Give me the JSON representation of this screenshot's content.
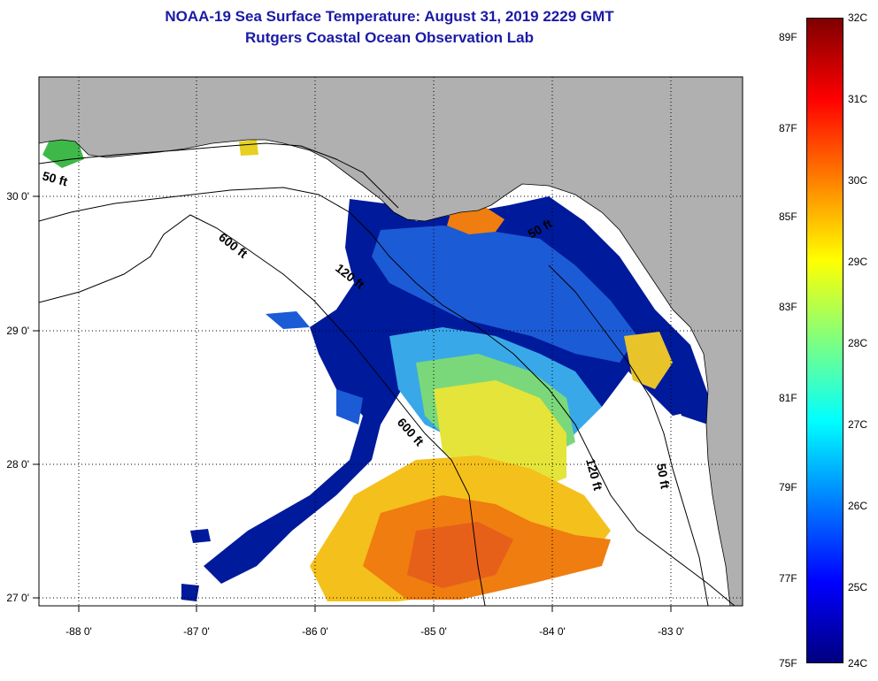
{
  "title": "NOAA-19 Sea Surface Temperature:  August 31, 2019 2229 GMT",
  "subtitle": "Rutgers Coastal Ocean Observation Lab",
  "map": {
    "lon_ticks": [
      "-88 0'",
      "-87 0'",
      "-86 0'",
      "-85 0'",
      "-84 0'",
      "-83 0'"
    ],
    "lat_ticks": [
      "30 0'",
      "29 0'",
      "28 0'",
      "27 0'"
    ],
    "contour_labels": {
      "c50_west": "50 ft",
      "c600_north": "600 ft",
      "c120_north": "120 ft",
      "c50_bay": "50 ft",
      "c600_south": "600 ft",
      "c120_south": "120 ft",
      "c50_east": "50 ft"
    },
    "land_color": "#b0b0b0",
    "no_data_color": "#ffffff"
  },
  "colorbar": {
    "range_c": [
      24,
      32
    ],
    "range_f": [
      75,
      89
    ],
    "celsius_labels": [
      "32C",
      "31C",
      "30C",
      "29C",
      "28C",
      "27C",
      "26C",
      "25C",
      "24C"
    ],
    "fahrenheit_labels": [
      "89F",
      "87F",
      "85F",
      "83F",
      "81F",
      "79F",
      "77F",
      "75F"
    ],
    "colors": [
      "#00007f",
      "#0000ff",
      "#007fff",
      "#00ffff",
      "#7fff7f",
      "#ffff00",
      "#ff7f00",
      "#ff0000",
      "#7f0000"
    ]
  }
}
